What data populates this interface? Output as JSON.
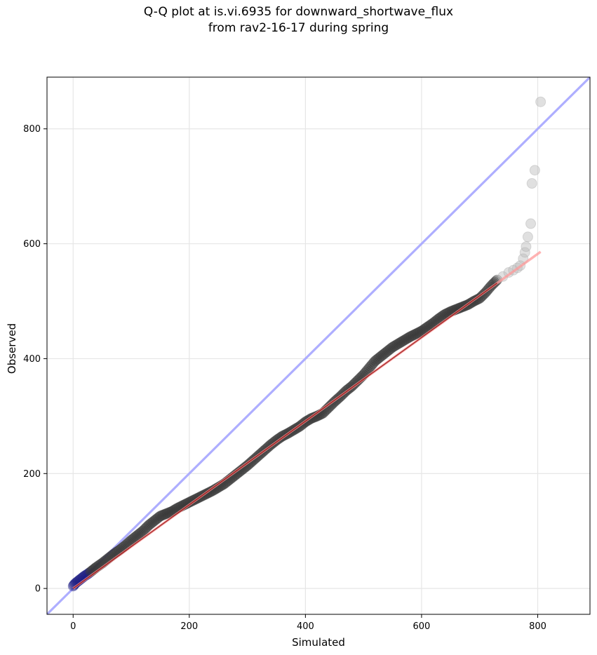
{
  "chart_data": {
    "type": "scatter",
    "title_lines": [
      "Q-Q plot at is.vi.6935 for downward_shortwave_flux",
      "from rav2-16-17 during spring"
    ],
    "xlabel": "Simulated",
    "ylabel": "Observed",
    "xlim": [
      -45,
      890
    ],
    "ylim": [
      -45,
      890
    ],
    "xticks": [
      0,
      200,
      400,
      600,
      800
    ],
    "yticks": [
      0,
      200,
      400,
      600,
      800
    ],
    "xtick_labels": [
      "0",
      "200",
      "400",
      "600",
      "800"
    ],
    "ytick_labels": [
      "0",
      "200",
      "400",
      "600",
      "800"
    ],
    "grid": true,
    "colors": {
      "points": "#333333",
      "outer_points": "#bbbbbb",
      "low_points": "#1a1a80",
      "identity_line": "#aaaaff",
      "fit_line": "#ff9999",
      "fit_line_dark": "#8b0000"
    },
    "identity_line": {
      "x": [
        -45,
        890
      ],
      "y": [
        -45,
        890
      ]
    },
    "fit_line": {
      "x": [
        0,
        805
      ],
      "y": [
        0,
        586
      ]
    },
    "series": [
      {
        "role": "quantiles",
        "x": [
          0,
          2,
          5,
          10,
          15,
          20,
          25,
          30,
          35,
          40,
          50,
          60,
          70,
          80,
          90,
          100,
          110,
          120,
          130,
          140,
          150,
          160,
          170,
          180,
          190,
          200,
          210,
          220,
          230,
          240,
          250,
          260,
          270,
          280,
          290,
          300,
          310,
          320,
          330,
          340,
          350,
          360,
          370,
          380,
          390,
          400,
          410,
          420,
          430,
          440,
          450,
          460,
          470,
          480,
          490,
          500,
          510,
          520,
          530,
          540,
          550,
          560,
          570,
          580,
          590,
          600,
          610,
          620,
          630,
          640,
          650,
          660,
          670,
          680,
          690,
          700,
          710,
          720,
          730
        ],
        "y": [
          4,
          7,
          10,
          14,
          18,
          22,
          25,
          29,
          33,
          37,
          44,
          52,
          60,
          67,
          75,
          84,
          92,
          100,
          110,
          118,
          126,
          130,
          134,
          140,
          145,
          150,
          155,
          160,
          165,
          170,
          176,
          182,
          190,
          198,
          206,
          214,
          223,
          232,
          241,
          250,
          258,
          265,
          270,
          276,
          282,
          290,
          296,
          300,
          305,
          315,
          325,
          334,
          344,
          352,
          362,
          372,
          384,
          396,
          404,
          412,
          420,
          426,
          432,
          438,
          443,
          448,
          455,
          462,
          470,
          477,
          482,
          486,
          490,
          494,
          500,
          505,
          515,
          527,
          537
        ]
      },
      {
        "role": "upper_tail",
        "x": [
          740,
          750,
          758,
          765,
          770,
          775,
          778,
          780,
          783,
          788,
          790,
          795,
          805
        ],
        "y": [
          543,
          550,
          554,
          558,
          562,
          574,
          585,
          595,
          612,
          635,
          705,
          728,
          847
        ]
      }
    ]
  }
}
